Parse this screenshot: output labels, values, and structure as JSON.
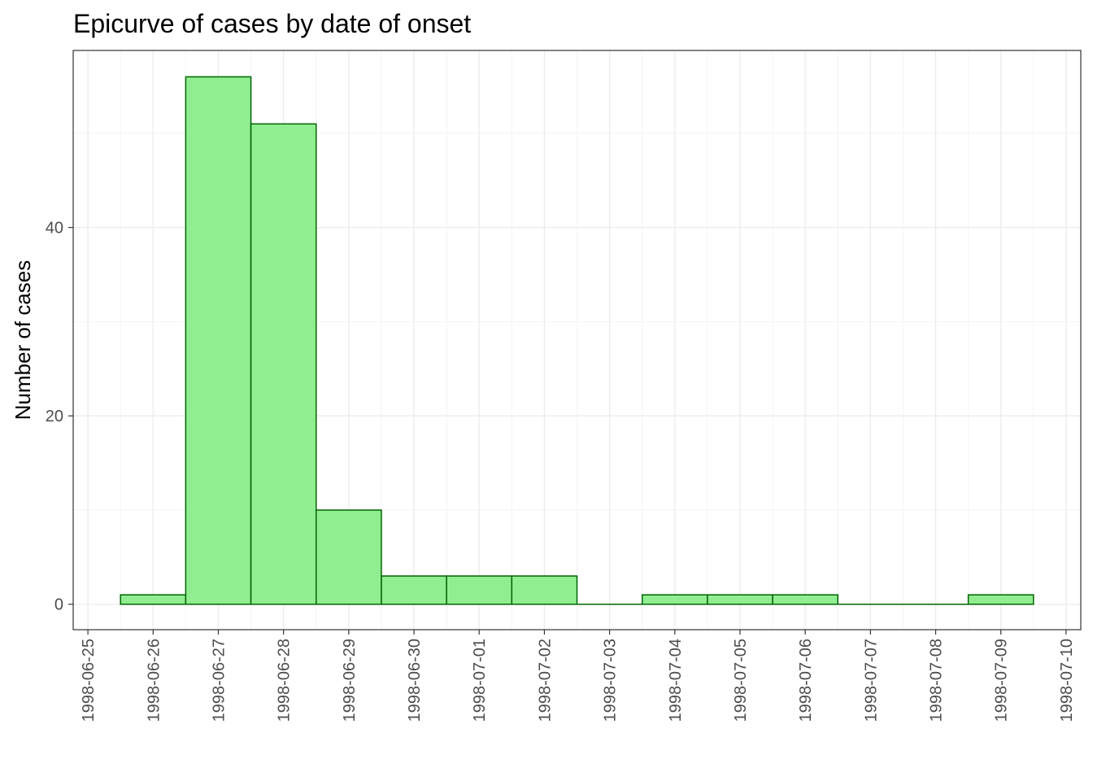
{
  "chart_data": {
    "type": "bar",
    "title": "Epicurve of cases by date of onset",
    "xlabel": "",
    "ylabel": "Number of cases",
    "x_axis_type": "date",
    "xlim": [
      "1998-06-25",
      "1998-07-10"
    ],
    "x_ticks": [
      "1998-06-25",
      "1998-06-26",
      "1998-06-27",
      "1998-06-28",
      "1998-06-29",
      "1998-06-30",
      "1998-07-01",
      "1998-07-02",
      "1998-07-03",
      "1998-07-04",
      "1998-07-05",
      "1998-07-06",
      "1998-07-07",
      "1998-07-08",
      "1998-07-09",
      "1998-07-10"
    ],
    "categories": [
      "1998-06-26",
      "1998-06-27",
      "1998-06-28",
      "1998-06-29",
      "1998-06-30",
      "1998-07-01",
      "1998-07-02",
      "1998-07-03",
      "1998-07-04",
      "1998-07-05",
      "1998-07-06",
      "1998-07-07",
      "1998-07-08",
      "1998-07-09"
    ],
    "values": [
      1,
      56,
      51,
      10,
      3,
      3,
      3,
      0,
      1,
      1,
      1,
      0,
      0,
      1
    ],
    "y_ticks": [
      0,
      20,
      40
    ],
    "ylim": [
      -2.7,
      58.8
    ],
    "grid": true,
    "legend": "none",
    "colors": {
      "bar_fill": "#90ee90",
      "bar_stroke": "#006400",
      "grid_major": "#ebebeb",
      "grid_minor": "#f4f4f4",
      "panel_border": "#333333",
      "tick_text": "#4d4d4d"
    }
  }
}
